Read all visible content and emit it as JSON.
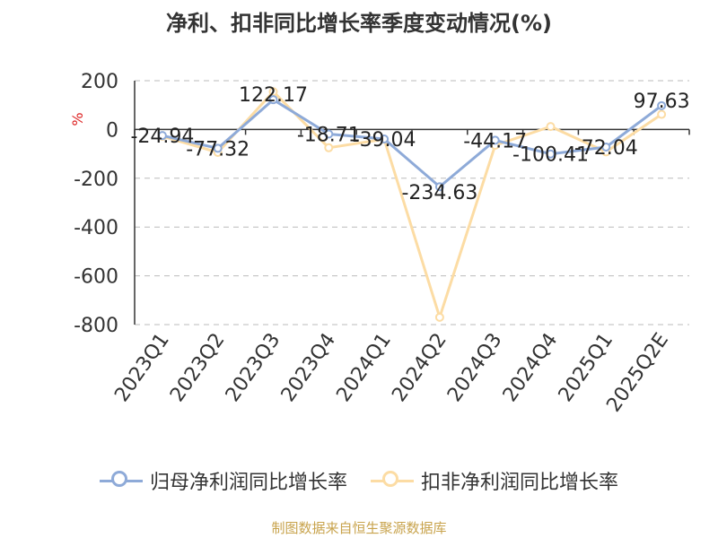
{
  "chart_data": {
    "type": "line",
    "title": "净利、扣非同比增长率季度变动情况(%)",
    "ylabel": "%",
    "xlabel": "",
    "categories": [
      "2023Q1",
      "2023Q2",
      "2023Q3",
      "2023Q4",
      "2024Q1",
      "2024Q2",
      "2024Q3",
      "2024Q4",
      "2025Q1",
      "2025Q2E"
    ],
    "ylim": [
      -800,
      200
    ],
    "yticks": [
      200,
      0,
      -200,
      -400,
      -600,
      -800
    ],
    "grid": true,
    "legend": "bottom",
    "series": [
      {
        "name": "归母净利润同比增长率",
        "color": "#8eaad8",
        "values": [
          -24.94,
          -77.32,
          122.17,
          -18.71,
          -39.04,
          -234.63,
          -44.17,
          -100.41,
          -72.04,
          97.63
        ],
        "labels": [
          "-24.94",
          "-77.32",
          "122.17",
          "-18.71",
          "-39.04",
          "-234.63",
          "-44.17",
          "-100.41",
          "-72.04",
          "97.63"
        ]
      },
      {
        "name": "扣非净利润同比增长率",
        "color": "#fcdca4",
        "values": [
          -28,
          -94,
          155,
          -75,
          -40,
          -770,
          -65,
          12,
          -92,
          62
        ]
      }
    ]
  },
  "source": "制图数据来自恒生聚源数据库"
}
